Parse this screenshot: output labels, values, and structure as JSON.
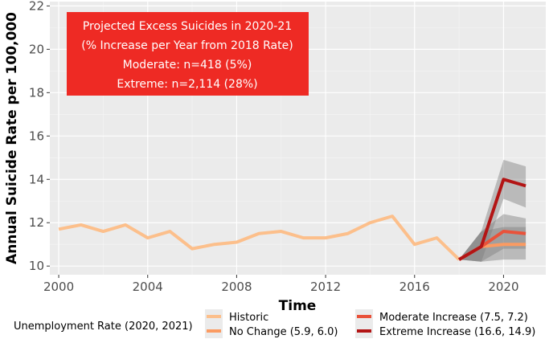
{
  "chart_data": {
    "type": "line",
    "xlabel": "Time",
    "ylabel": "Annual Suicide Rate per 100,000",
    "xlim": [
      1999.6,
      2021.9
    ],
    "ylim": [
      9.6,
      22.2
    ],
    "x_ticks": [
      2000,
      2004,
      2008,
      2012,
      2016,
      2020
    ],
    "y_ticks": [
      10,
      12,
      14,
      16,
      18,
      20,
      22
    ],
    "grid": true,
    "annotation": {
      "lines": [
        "Projected Excess Suicides in 2020-21",
        "(% Increase per Year from 2018 Rate)",
        "Moderate: n=418 (5%)",
        "Extreme: n=2,114 (28%)"
      ],
      "background": "#ee2a24"
    },
    "legend": {
      "title": "Unemployment Rate (2020, 2021)",
      "position": "bottom"
    },
    "series": [
      {
        "name": "Historic",
        "color": "#fcbf8b",
        "x": [
          2000,
          2001,
          2002,
          2003,
          2004,
          2005,
          2006,
          2007,
          2008,
          2009,
          2010,
          2011,
          2012,
          2013,
          2014,
          2015,
          2016,
          2017,
          2018
        ],
        "values": [
          11.7,
          11.9,
          11.6,
          11.9,
          11.3,
          11.6,
          10.8,
          11.0,
          11.1,
          11.5,
          11.6,
          11.3,
          11.3,
          11.5,
          12.0,
          12.3,
          11.0,
          11.3,
          10.3
        ]
      },
      {
        "name": "No Change (5.9, 6.0)",
        "color": "#fb9b62",
        "x": [
          2018,
          2019,
          2020,
          2021
        ],
        "values": [
          10.3,
          10.9,
          11.0,
          11.0
        ],
        "ci_lower": [
          10.3,
          10.2,
          10.3,
          10.3
        ],
        "ci_upper": [
          10.3,
          11.6,
          11.8,
          11.8
        ]
      },
      {
        "name": "Moderate Increase (7.5, 7.2)",
        "color": "#e9523a",
        "x": [
          2018,
          2019,
          2020,
          2021
        ],
        "values": [
          10.3,
          10.9,
          11.6,
          11.5
        ],
        "ci_lower": [
          10.3,
          10.2,
          10.8,
          10.8
        ],
        "ci_upper": [
          10.3,
          11.6,
          12.4,
          12.2
        ]
      },
      {
        "name": "Extreme Increase (16.6, 14.9)",
        "color": "#b31515",
        "x": [
          2018,
          2019,
          2020,
          2021
        ],
        "values": [
          10.3,
          10.9,
          14.0,
          13.7
        ],
        "ci_lower": [
          10.3,
          10.2,
          13.1,
          12.7
        ],
        "ci_upper": [
          10.3,
          11.6,
          14.9,
          14.6
        ]
      }
    ]
  }
}
